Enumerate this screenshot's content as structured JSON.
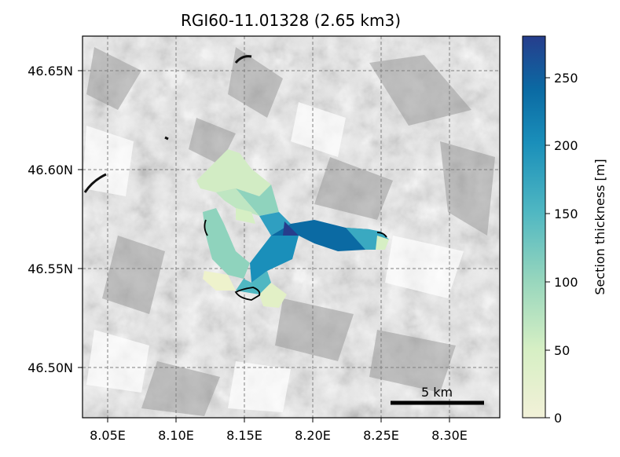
{
  "title": "RGI60-11.01328 (2.65 km3)",
  "map": {
    "x_ticks": [
      "8.05E",
      "8.10E",
      "8.15E",
      "8.20E",
      "8.25E",
      "8.30E"
    ],
    "y_ticks": [
      "46.65N",
      "46.60N",
      "46.55N",
      "46.50N"
    ],
    "grid": true,
    "grid_style": "dashed",
    "scale_bar_label": "5 km",
    "background": "hillshade (grayscale)",
    "glacier_outline_color": "#000000"
  },
  "colorbar": {
    "label": "Section thickness [m]",
    "ticks": [
      "0",
      "50",
      "100",
      "150",
      "200",
      "250"
    ],
    "range": [
      0,
      280
    ],
    "colormap": "YlGnBu-like",
    "colors": [
      "#f2f1d8",
      "#c9ebc3",
      "#79cbbf",
      "#3aa9c1",
      "#0a7fae",
      "#0c5a96",
      "#263d8c"
    ]
  }
}
